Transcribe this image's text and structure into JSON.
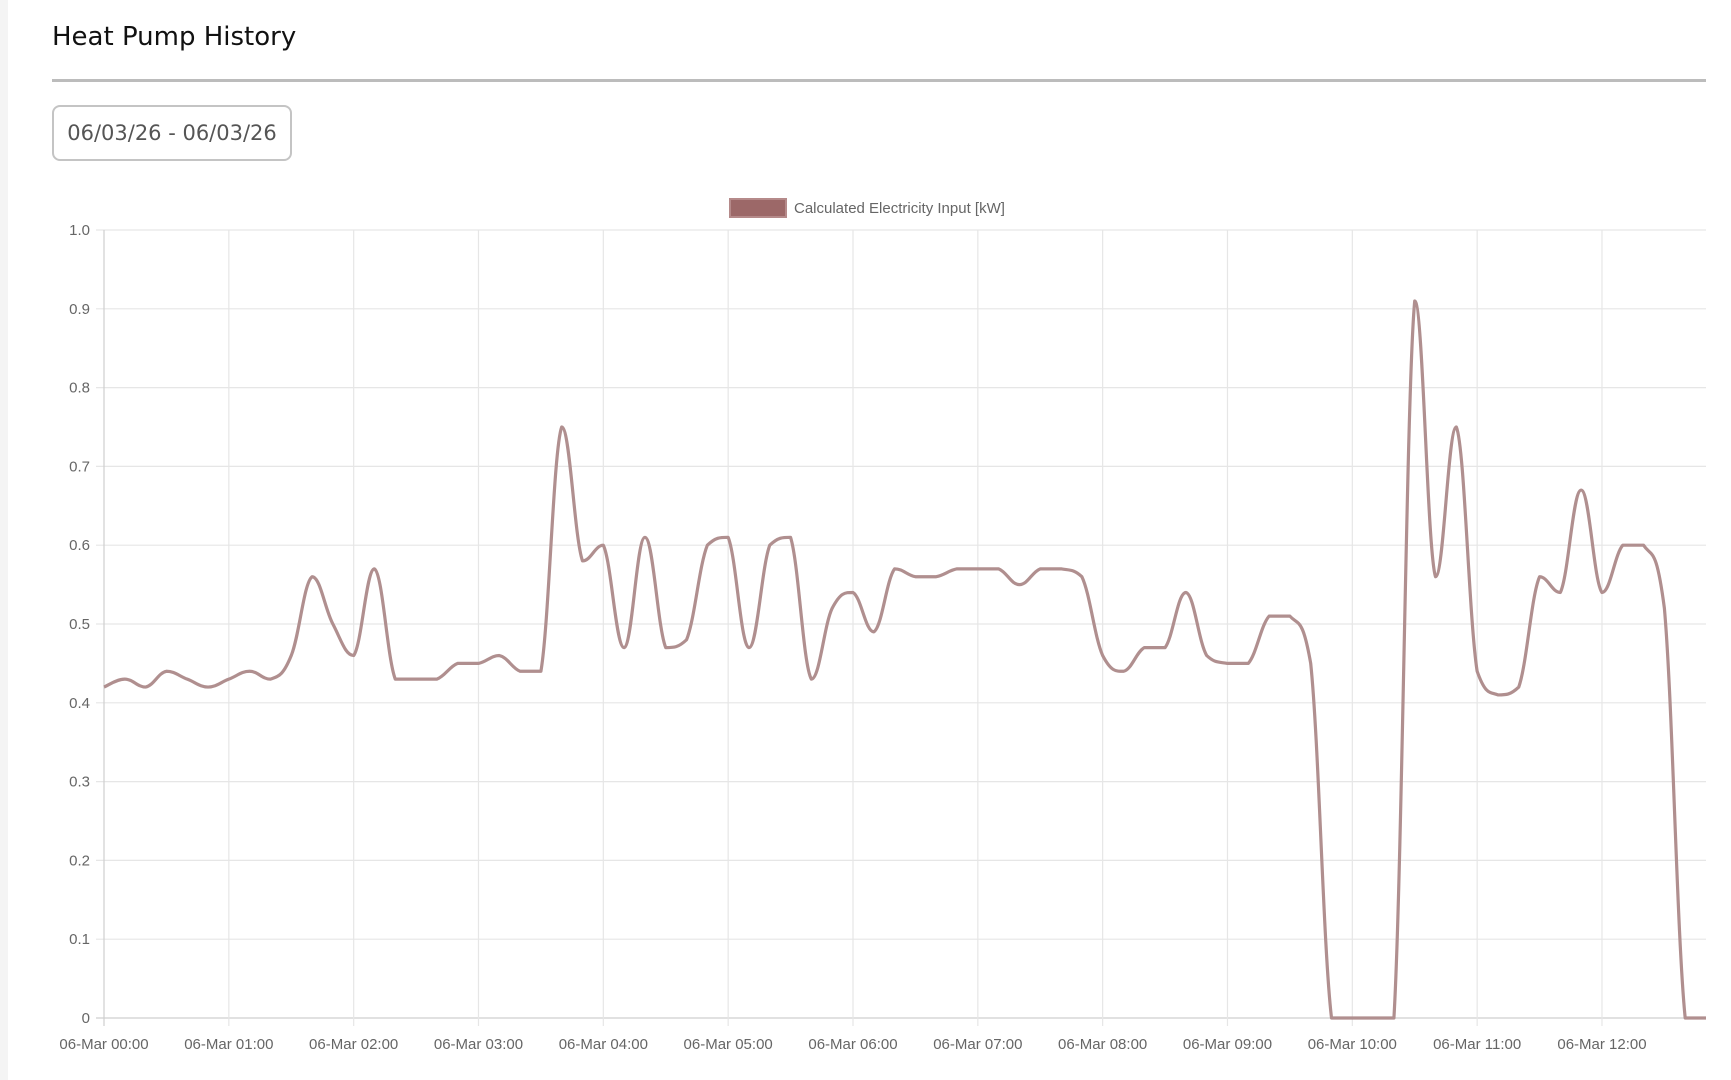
{
  "header": {
    "title": "Heat Pump History"
  },
  "date_range": {
    "value": "06/03/26 - 06/03/26"
  },
  "colors": {
    "line": "#b08f8f",
    "legend_fill": "#9c6868",
    "legend_border": "#b58a8a",
    "grid": "#e6e6e6"
  },
  "chart_data": {
    "type": "line",
    "title": "",
    "xlabel": "",
    "ylabel": "",
    "ylim": [
      0,
      1.0
    ],
    "y_ticks": [
      "0",
      "0.1",
      "0.2",
      "0.3",
      "0.4",
      "0.5",
      "0.6",
      "0.7",
      "0.8",
      "0.9",
      "1.0"
    ],
    "x_ticks": [
      "06-Mar 00:00",
      "06-Mar 01:00",
      "06-Mar 02:00",
      "06-Mar 03:00",
      "06-Mar 04:00",
      "06-Mar 05:00",
      "06-Mar 06:00",
      "06-Mar 07:00",
      "06-Mar 08:00",
      "06-Mar 09:00",
      "06-Mar 10:00",
      "06-Mar 11:00",
      "06-Mar 12:00"
    ],
    "grid": true,
    "legend_position": "top",
    "x_interval_minutes": 10,
    "x_start": "06-Mar 00:00",
    "x_end": "06-Mar 12:50",
    "series": [
      {
        "name": "Calculated Electricity Input [kW]",
        "values": [
          0.42,
          0.43,
          0.42,
          0.44,
          0.43,
          0.42,
          0.43,
          0.44,
          0.43,
          0.46,
          0.56,
          0.5,
          0.46,
          0.57,
          0.43,
          0.43,
          0.43,
          0.45,
          0.45,
          0.46,
          0.44,
          0.44,
          0.75,
          0.58,
          0.6,
          0.47,
          0.61,
          0.47,
          0.48,
          0.6,
          0.61,
          0.47,
          0.6,
          0.61,
          0.43,
          0.52,
          0.54,
          0.49,
          0.57,
          0.56,
          0.56,
          0.57,
          0.57,
          0.57,
          0.55,
          0.57,
          0.57,
          0.56,
          0.46,
          0.44,
          0.47,
          0.47,
          0.54,
          0.46,
          0.45,
          0.45,
          0.51,
          0.51,
          0.45,
          0,
          0,
          0,
          0,
          0.91,
          0.56,
          0.75,
          0.44,
          0.41,
          0.42,
          0.56,
          0.54,
          0.67,
          0.54,
          0.6,
          0.6,
          0.52,
          0,
          0
        ]
      }
    ]
  }
}
